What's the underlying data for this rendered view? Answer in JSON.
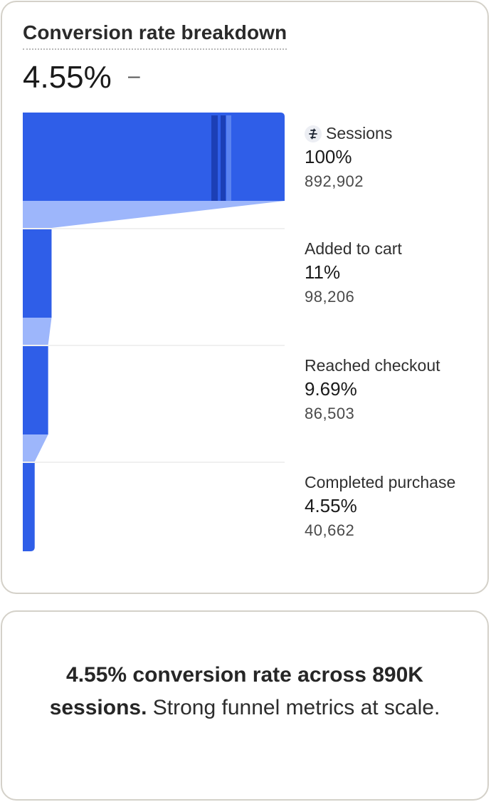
{
  "card": {
    "title": "Conversion rate breakdown",
    "headline_value": "4.55%",
    "headline_change": "–"
  },
  "colors": {
    "bar": "#2f5ee8",
    "connector": "#9db6fb",
    "bar_dark": "#1c3fb6",
    "bar_light": "#5a82f0",
    "gridline": "#ececec"
  },
  "chart_data": {
    "type": "bar",
    "orientation": "horizontal-funnel",
    "categories": [
      "Sessions",
      "Added to cart",
      "Reached checkout",
      "Completed purchase"
    ],
    "percent_labels": [
      "100%",
      "11%",
      "9.69%",
      "4.55%"
    ],
    "count_labels": [
      "892,902",
      "98,206",
      "86,503",
      "40,662"
    ],
    "values": [
      892902,
      98206,
      86503,
      40662
    ],
    "percent_values": [
      100,
      11,
      9.69,
      4.55
    ],
    "xlim": [
      0,
      100
    ],
    "first_stage_icon": "sessions-icon",
    "grid": true
  },
  "summary": {
    "bold_text": "4.55% conversion rate across 890K sessions.",
    "regular_text": " Strong funnel metrics at scale."
  }
}
